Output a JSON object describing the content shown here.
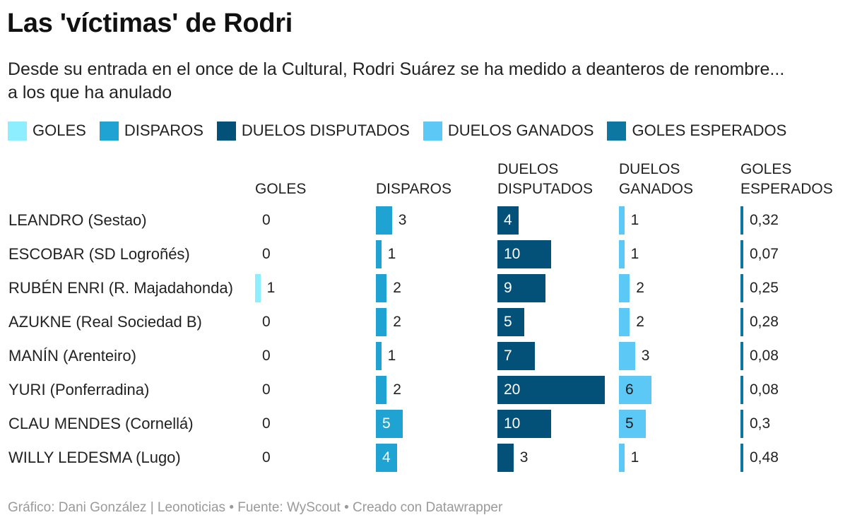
{
  "title": "Las 'víctimas' de Rodri",
  "subtitle": "Desde su entrada en el once de la Cultural, Rodri Suárez se ha medido a deanteros de renombre... a los que ha anulado",
  "footer": "Gráfico: Dani González | Leonoticias • Fuente: WyScout • Creado con Datawrapper",
  "colors": {
    "goles": "#8ceeff",
    "disparos": "#1ea3d2",
    "duelos_disputados": "#035079",
    "duelos_ganados": "#5bc8f5",
    "goles_esperados": "#0d77a1"
  },
  "chart_data": {
    "type": "bar",
    "title": "Las 'víctimas' de Rodri",
    "layout": "small-multiples-table",
    "categories": [
      "LEANDRO (Sestao)",
      "ESCOBAR (SD Logroñés)",
      "RUBÉN ENRI (R. Majadahonda)",
      "AZUKNE (Real Sociedad B)",
      "MANÍN (Arenteiro)",
      "YURI (Ponferradina)",
      "CLAU MENDES (Cornellá)",
      "WILLY LEDESMA (Lugo)"
    ],
    "series": [
      {
        "key": "goles",
        "name": "GOLES",
        "legend": "GOLES",
        "header": [
          "GOLES"
        ],
        "color": "#8ceeff",
        "max": 20,
        "values": [
          0,
          0,
          1,
          0,
          0,
          0,
          0,
          0
        ],
        "labels": [
          "0",
          "0",
          "1",
          "0",
          "0",
          "0",
          "0",
          "0"
        ]
      },
      {
        "key": "disparos",
        "name": "DISPAROS",
        "legend": "DISPAROS",
        "header": [
          "DISPAROS"
        ],
        "color": "#1ea3d2",
        "max": 20,
        "values": [
          3,
          1,
          2,
          2,
          1,
          2,
          5,
          4
        ],
        "labels": [
          "3",
          "1",
          "2",
          "2",
          "1",
          "2",
          "5",
          "4"
        ]
      },
      {
        "key": "duelos_disputados",
        "name": "DUELOS DISPUTADOS",
        "legend": "DUELOS DISPUTADOS",
        "header": [
          "DUELOS",
          "DISPUTADOS"
        ],
        "color": "#035079",
        "max": 20,
        "values": [
          4,
          10,
          9,
          5,
          7,
          20,
          10,
          3
        ],
        "labels": [
          "4",
          "10",
          "9",
          "5",
          "7",
          "20",
          "10",
          "3"
        ]
      },
      {
        "key": "duelos_ganados",
        "name": "DUELOS GANADOS",
        "legend": "DUELOS GANADOS",
        "header": [
          "DUELOS",
          "GANADOS"
        ],
        "color": "#5bc8f5",
        "max": 20,
        "values": [
          1,
          1,
          2,
          2,
          3,
          6,
          5,
          1
        ],
        "labels": [
          "1",
          "1",
          "2",
          "2",
          "3",
          "6",
          "5",
          "1"
        ]
      },
      {
        "key": "goles_esperados",
        "name": "GOLES ESPERADOS",
        "legend": "GOLES ESPERADOS",
        "header": [
          "GOLES",
          "ESPERADOS"
        ],
        "color": "#0d77a1",
        "max": 20,
        "values": [
          0.32,
          0.07,
          0.25,
          0.28,
          0.08,
          0.08,
          0.3,
          0.48
        ],
        "labels": [
          "0,32",
          "0,07",
          "0,25",
          "0,28",
          "0,08",
          "0,08",
          "0,3",
          "0,48"
        ]
      }
    ]
  }
}
